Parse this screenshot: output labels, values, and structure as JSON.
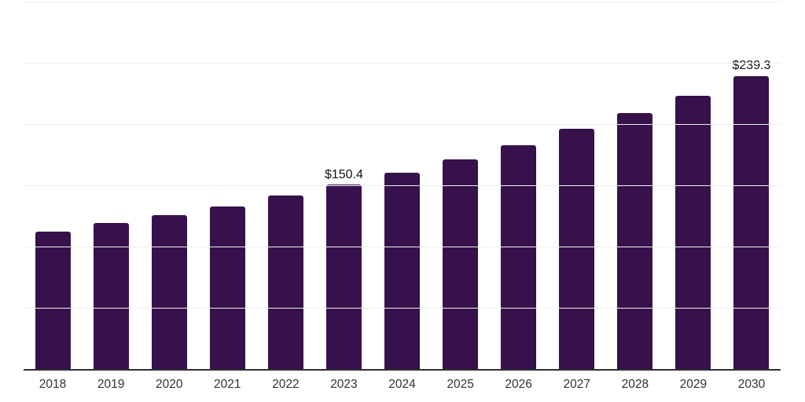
{
  "chart": {
    "bar_color": "#36114B",
    "grid_color": "#F0F0F0",
    "axis_color": "#2F2F2F",
    "x_label_color": "#333333",
    "data_label_color": "#111111",
    "background_color": "#FFFFFF"
  },
  "chart_data": {
    "type": "bar",
    "title": "",
    "xlabel": "",
    "ylabel": "",
    "categories": [
      "2018",
      "2019",
      "2020",
      "2021",
      "2022",
      "2023",
      "2024",
      "2025",
      "2026",
      "2027",
      "2028",
      "2029",
      "2030"
    ],
    "values": [
      112.3,
      119.0,
      125.7,
      132.8,
      141.8,
      150.4,
      160.4,
      171.3,
      182.8,
      196.3,
      209.1,
      223.2,
      239.3
    ],
    "data_labels": [
      "",
      "",
      "",
      "",
      "",
      "$150.4",
      "",
      "",
      "",
      "",
      "",
      "",
      "$239.3"
    ],
    "ylim": [
      0,
      300
    ],
    "gridline_interval": 50,
    "grid": true,
    "y_tick_labels_visible": false,
    "legend": false,
    "currency_prefix": "$"
  }
}
